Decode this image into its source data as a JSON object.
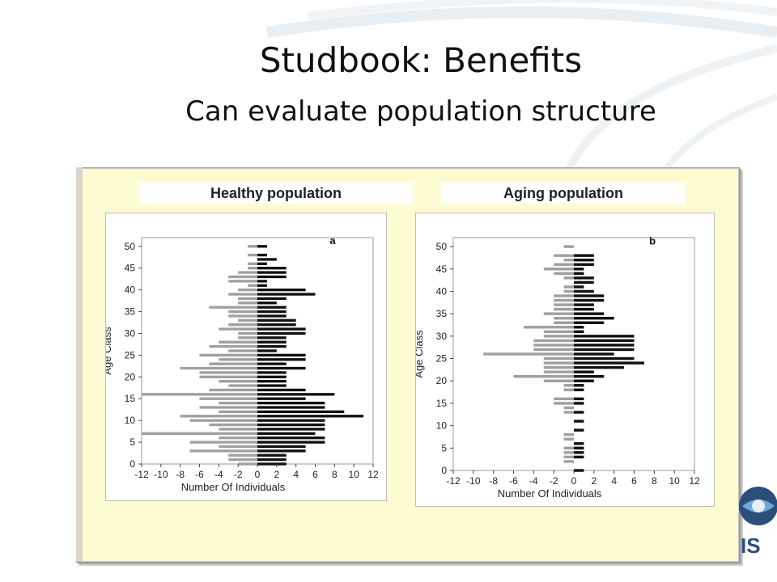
{
  "slide": {
    "title": "Studbook: Benefits",
    "subtitle": "Can evaluate population structure"
  },
  "panels": {
    "left_label": "Healthy population",
    "right_label": "Aging population"
  },
  "logo_text": "IS",
  "chart_data": [
    {
      "type": "bar",
      "orientation": "horizontal",
      "panel_letter": "a",
      "xlabel": "Number Of Individuals",
      "ylabel": "Age Class",
      "xlim": [
        -12,
        12
      ],
      "ylim": [
        0,
        52
      ],
      "xticks": [
        -12,
        -10,
        -8,
        -6,
        -4,
        -2,
        0,
        2,
        4,
        6,
        8,
        10,
        12
      ],
      "yticks": [
        0,
        5,
        10,
        15,
        20,
        25,
        30,
        35,
        40,
        45,
        50
      ],
      "categories": [
        0,
        1,
        2,
        3,
        4,
        5,
        6,
        7,
        8,
        9,
        10,
        11,
        12,
        13,
        14,
        15,
        16,
        17,
        18,
        19,
        20,
        21,
        22,
        23,
        24,
        25,
        26,
        27,
        28,
        29,
        30,
        31,
        32,
        33,
        34,
        35,
        36,
        37,
        38,
        39,
        40,
        41,
        42,
        43,
        44,
        45,
        46,
        47,
        48,
        49,
        50,
        51
      ],
      "series": [
        {
          "values": [
            -2,
            -3,
            -3,
            -7,
            -4,
            -7,
            -4,
            -12,
            -4,
            -5,
            -7,
            -8,
            -4,
            -6,
            -4,
            -6,
            -12,
            -5,
            -3,
            -4,
            -6,
            -6,
            -8,
            -5,
            -4,
            -6,
            -3,
            -5,
            -4,
            -2,
            -2,
            -4,
            -3,
            -2,
            -3,
            -3,
            -5,
            -2,
            -2,
            -3,
            -2,
            -1,
            -3,
            -3,
            -2,
            -1,
            -1,
            0,
            -1,
            0,
            -1,
            0
          ],
          "color": "#a0a0a0"
        },
        {
          "values": [
            3,
            3,
            3,
            5,
            5,
            7,
            7,
            6,
            7,
            7,
            7,
            11,
            9,
            7,
            7,
            5,
            8,
            5,
            3,
            3,
            3,
            3,
            5,
            3,
            5,
            5,
            2,
            3,
            3,
            3,
            5,
            5,
            4,
            4,
            3,
            3,
            3,
            2,
            3,
            6,
            5,
            1,
            1,
            3,
            3,
            3,
            1,
            2,
            1,
            0,
            1,
            0
          ],
          "color": "#111111"
        }
      ]
    },
    {
      "type": "bar",
      "orientation": "horizontal",
      "panel_letter": "b",
      "xlabel": "Number Of Individuals",
      "ylabel": "Age Class",
      "xlim": [
        -12,
        12
      ],
      "ylim": [
        0,
        52
      ],
      "xticks": [
        -12,
        -10,
        -8,
        -6,
        -4,
        -2,
        0,
        2,
        4,
        6,
        8,
        10,
        12
      ],
      "yticks": [
        0,
        5,
        10,
        15,
        20,
        25,
        30,
        35,
        40,
        45,
        50
      ],
      "categories": [
        0,
        1,
        2,
        3,
        4,
        5,
        6,
        7,
        8,
        9,
        10,
        11,
        12,
        13,
        14,
        15,
        16,
        17,
        18,
        19,
        20,
        21,
        22,
        23,
        24,
        25,
        26,
        27,
        28,
        29,
        30,
        31,
        32,
        33,
        34,
        35,
        36,
        37,
        38,
        39,
        40,
        41,
        42,
        43,
        44,
        45,
        46,
        47,
        48,
        49,
        50,
        51
      ],
      "series": [
        {
          "values": [
            0,
            0,
            -1,
            -1,
            -1,
            -1,
            0,
            -1,
            -1,
            0,
            0,
            0,
            0,
            -1,
            -1,
            -2,
            -2,
            0,
            -1,
            -1,
            -3,
            -6,
            -3,
            -3,
            -3,
            -3,
            -9,
            -4,
            -4,
            -4,
            -3,
            -3,
            -5,
            -2,
            -2,
            -3,
            -2,
            -2,
            -2,
            -2,
            -1,
            -1,
            0,
            -1,
            -2,
            -3,
            -2,
            -1,
            -2,
            0,
            -1,
            0
          ],
          "color": "#a0a0a0"
        },
        {
          "values": [
            1,
            0,
            0,
            1,
            1,
            1,
            1,
            0,
            0,
            1,
            0,
            1,
            0,
            1,
            0,
            1,
            1,
            0,
            1,
            1,
            2,
            3,
            2,
            5,
            7,
            6,
            4,
            6,
            6,
            6,
            6,
            1,
            1,
            3,
            4,
            3,
            2,
            2,
            3,
            3,
            2,
            1,
            2,
            2,
            1,
            1,
            2,
            2,
            2,
            0,
            0,
            0
          ],
          "color": "#111111"
        }
      ]
    }
  ]
}
